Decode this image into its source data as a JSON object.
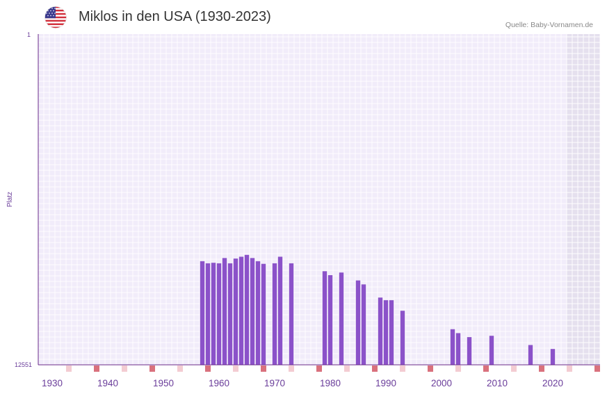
{
  "header": {
    "title": "Miklos in den USA (1930-2023)",
    "source": "Quelle: Baby-Vornamen.de",
    "flag_icon": "usa-flag-icon"
  },
  "colors": {
    "bar": "#8b52c9",
    "plot_bg": "#f1ecfa",
    "grid": "#ffffff",
    "shaded_bg": "#e5e0ee",
    "axis": "#6a2a8a",
    "tick_text": "#6a3d9a",
    "marker_strong": "#d9717d",
    "marker_light": "#f3ccd2"
  },
  "chart_data": {
    "type": "bar",
    "title": "Miklos in den USA (1930-2023)",
    "xlabel": "",
    "ylabel": "Platz",
    "y_axis_inverted": true,
    "ylim": [
      1,
      12551
    ],
    "y_tick_labels": [
      "1",
      "12551"
    ],
    "xlim": [
      1928,
      2029
    ],
    "x_tick_labels": [
      "1930",
      "1940",
      "1950",
      "1960",
      "1970",
      "1980",
      "1990",
      "2000",
      "2010",
      "2020"
    ],
    "shaded_years": [
      2023,
      2028
    ],
    "marker_years_strong": [
      1938,
      1948,
      1958,
      1968,
      1978,
      1988,
      1998,
      2008,
      2018,
      2028
    ],
    "marker_years_light": [
      1933,
      1943,
      1953,
      1963,
      1973,
      1983,
      1993,
      2003,
      2013,
      2023
    ],
    "series": [
      {
        "name": "Miklos",
        "x": [
          1957,
          1958,
          1959,
          1960,
          1961,
          1962,
          1963,
          1964,
          1965,
          1966,
          1967,
          1968,
          1970,
          1971,
          1973,
          1979,
          1980,
          1982,
          1985,
          1986,
          1989,
          1990,
          1991,
          1993,
          2002,
          2003,
          2005,
          2009,
          2016,
          2020
        ],
        "values": [
          8620,
          8700,
          8680,
          8700,
          8500,
          8700,
          8520,
          8450,
          8380,
          8500,
          8620,
          8720,
          8700,
          8450,
          8700,
          9000,
          9150,
          9050,
          9350,
          9500,
          10000,
          10100,
          10100,
          10500,
          11200,
          11350,
          11500,
          11450,
          11800,
          11950
        ]
      }
    ]
  }
}
